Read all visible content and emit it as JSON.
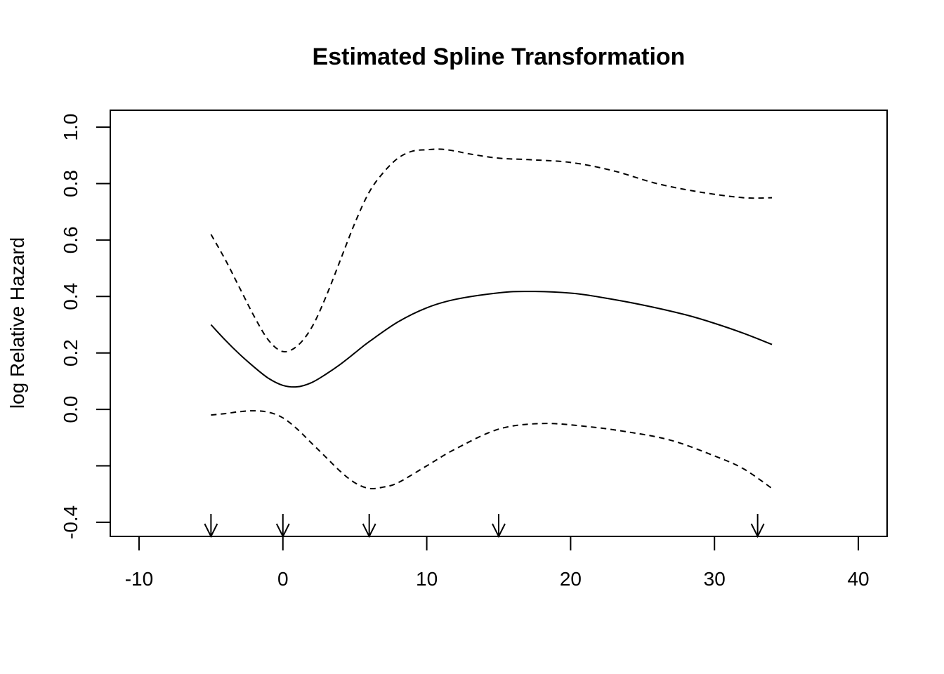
{
  "chart_data": {
    "type": "line",
    "title": "Estimated Spline Transformation",
    "xlabel": "",
    "ylabel": "log Relative Hazard",
    "xlim": [
      -12,
      42
    ],
    "ylim": [
      -0.45,
      1.06
    ],
    "x_ticks": [
      -10,
      0,
      10,
      20,
      30,
      40
    ],
    "x_tick_labels": [
      "-10",
      "0",
      "10",
      "20",
      "30",
      "40"
    ],
    "y_ticks": [
      -0.4,
      -0.2,
      0.0,
      0.2,
      0.4,
      0.6,
      0.8,
      1.0
    ],
    "y_tick_labels": [
      "-0.4",
      "",
      "0.0",
      "0.2",
      "0.4",
      "0.6",
      "0.8",
      "1.0"
    ],
    "grid": false,
    "legend": "none",
    "series": [
      {
        "style": "solid",
        "x": [
          -5,
          -4,
          -3,
          -2,
          -1,
          0,
          1,
          2,
          3,
          4,
          5,
          6,
          8,
          10,
          12,
          15,
          17,
          20,
          22,
          25,
          28,
          30,
          32,
          34
        ],
        "values": [
          0.3,
          0.245,
          0.195,
          0.15,
          0.11,
          0.085,
          0.08,
          0.095,
          0.125,
          0.16,
          0.2,
          0.24,
          0.31,
          0.36,
          0.39,
          0.413,
          0.418,
          0.412,
          0.398,
          0.37,
          0.335,
          0.305,
          0.27,
          0.23
        ]
      },
      {
        "style": "dashed",
        "x": [
          -5,
          -4,
          -3,
          -2,
          -1,
          0,
          1,
          2,
          3,
          4,
          5,
          6,
          7,
          8,
          9,
          10,
          11,
          12,
          13,
          15,
          17,
          20,
          23,
          26,
          29,
          32,
          34
        ],
        "values": [
          0.62,
          0.53,
          0.43,
          0.33,
          0.245,
          0.205,
          0.225,
          0.29,
          0.4,
          0.53,
          0.66,
          0.77,
          0.84,
          0.89,
          0.915,
          0.92,
          0.922,
          0.915,
          0.905,
          0.89,
          0.885,
          0.875,
          0.845,
          0.8,
          0.77,
          0.75,
          0.75
        ]
      },
      {
        "style": "dashed",
        "x": [
          -5,
          -4,
          -3,
          -2,
          -1,
          0,
          1,
          2,
          3,
          4,
          5,
          6,
          7,
          8,
          10,
          12,
          15,
          18,
          21,
          24,
          27,
          30,
          32,
          34
        ],
        "values": [
          -0.02,
          -0.015,
          -0.008,
          -0.005,
          -0.01,
          -0.03,
          -0.07,
          -0.12,
          -0.17,
          -0.22,
          -0.26,
          -0.28,
          -0.275,
          -0.26,
          -0.2,
          -0.14,
          -0.07,
          -0.05,
          -0.06,
          -0.08,
          -0.11,
          -0.165,
          -0.21,
          -0.28
        ]
      }
    ],
    "rug_arrows_x": [
      -5,
      0,
      6,
      15,
      33
    ]
  }
}
